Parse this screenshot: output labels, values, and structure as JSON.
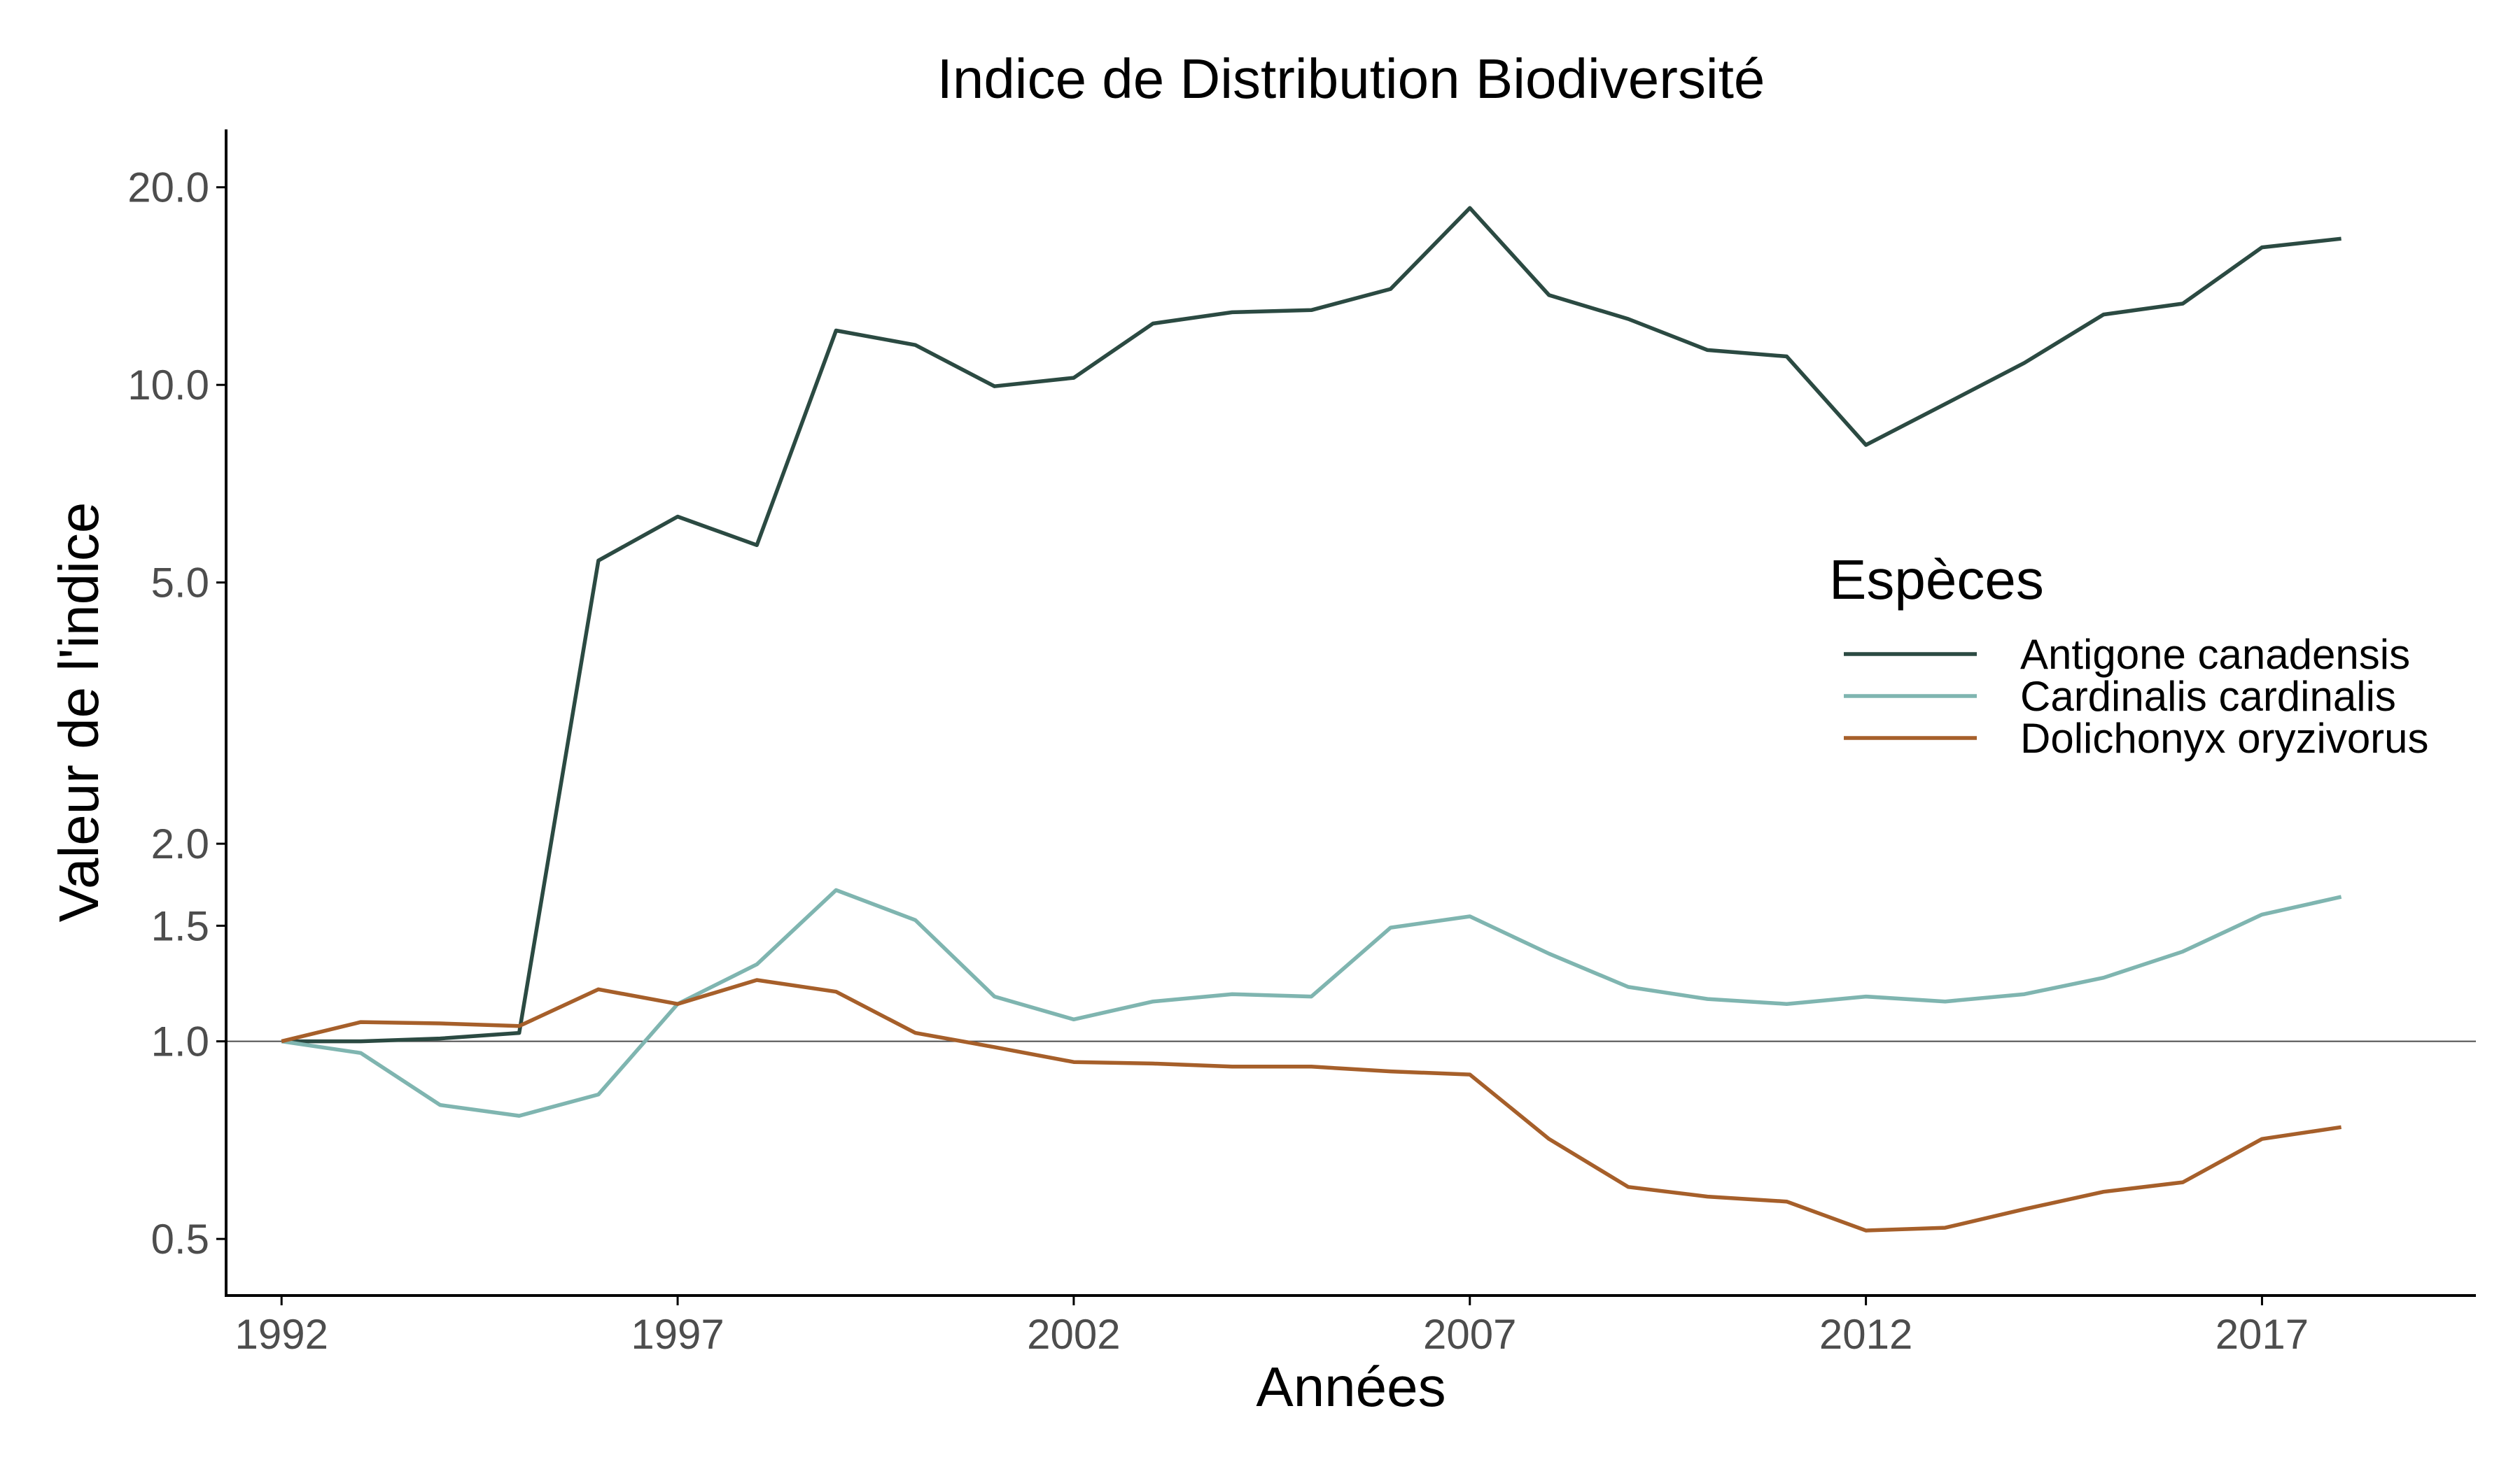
{
  "chart_data": {
    "type": "line",
    "title": "Indice de Distribution Biodiversité",
    "xlabel": "Années",
    "ylabel": "Valeur de l'indice",
    "yscale": "log",
    "xlim": [
      1991.3,
      2019.7
    ],
    "ylim": [
      0.41,
      24.5
    ],
    "x_ticks": [
      1992,
      1997,
      2002,
      2007,
      2012,
      2017
    ],
    "y_ticks": [
      {
        "value": 0.5,
        "label": "0.5"
      },
      {
        "value": 1.0,
        "label": "1.0"
      },
      {
        "value": 1.5,
        "label": "1.5"
      },
      {
        "value": 2.0,
        "label": "2.0"
      },
      {
        "value": 5.0,
        "label": "5.0"
      },
      {
        "value": 10.0,
        "label": "10.0"
      },
      {
        "value": 20.0,
        "label": "20.0"
      }
    ],
    "reference_line": 1.0,
    "grid": false,
    "legend": {
      "title": "Espèces",
      "placement": "right"
    },
    "x": [
      1992,
      1993,
      1994,
      1995,
      1996,
      1997,
      1998,
      1999,
      2000,
      2001,
      2002,
      2003,
      2004,
      2005,
      2006,
      2007,
      2008,
      2009,
      2010,
      2011,
      2012,
      2013,
      2014,
      2015,
      2016,
      2017,
      2018
    ],
    "series": [
      {
        "name": "Antigone canadensis",
        "color": "#2b4a42",
        "values": [
          1.0,
          1.0,
          1.01,
          1.03,
          5.4,
          6.3,
          5.7,
          12.1,
          11.5,
          9.95,
          10.25,
          12.4,
          12.9,
          13.0,
          14.0,
          18.6,
          13.7,
          12.6,
          11.3,
          11.05,
          8.1,
          9.35,
          10.8,
          12.8,
          13.3,
          16.2,
          16.7
        ]
      },
      {
        "name": "Cardinalis cardinalis",
        "color": "#7fb5b0",
        "values": [
          1.0,
          0.96,
          0.8,
          0.77,
          0.83,
          1.14,
          1.31,
          1.7,
          1.53,
          1.17,
          1.08,
          1.15,
          1.18,
          1.17,
          1.49,
          1.55,
          1.36,
          1.21,
          1.16,
          1.14,
          1.17,
          1.15,
          1.18,
          1.25,
          1.37,
          1.56,
          1.66
        ]
      },
      {
        "name": "Dolichonyx oryzivorus",
        "color": "#a65f2a",
        "values": [
          1.0,
          1.07,
          1.065,
          1.055,
          1.2,
          1.14,
          1.24,
          1.19,
          1.03,
          0.98,
          0.93,
          0.925,
          0.915,
          0.915,
          0.9,
          0.89,
          0.71,
          0.6,
          0.58,
          0.57,
          0.515,
          0.52,
          0.555,
          0.59,
          0.61,
          0.71,
          0.74
        ]
      }
    ]
  }
}
